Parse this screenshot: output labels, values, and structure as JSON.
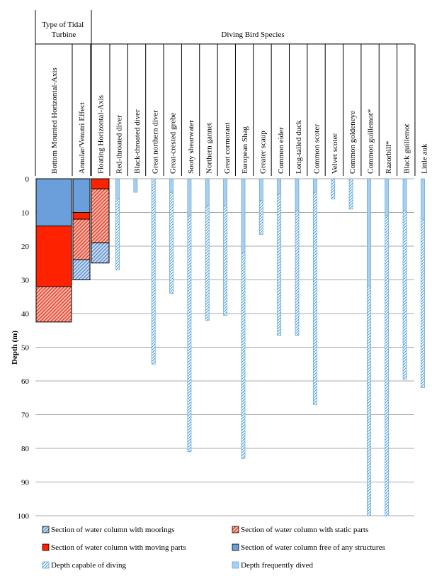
{
  "chart_data": {
    "type": "bar",
    "orientation": "vertical-range",
    "group_headers": {
      "turbines": "Type of Tidal Turbine",
      "birds": "Diving Bird Species"
    },
    "ylabel": "Depth (m)",
    "ylim": [
      0,
      100
    ],
    "y_inverted": true,
    "yticks": [
      "0",
      "10",
      "20",
      "30",
      "40",
      "50",
      "60",
      "70",
      "80",
      "90",
      "100"
    ],
    "grid": true,
    "turbines": [
      {
        "name": "Bottom Mounted Horizontal-Axis",
        "segments": [
          {
            "type": "free",
            "from": 0,
            "to": 14
          },
          {
            "type": "moving",
            "from": 14,
            "to": 32
          },
          {
            "type": "static",
            "from": 32,
            "to": 42.5
          }
        ]
      },
      {
        "name": "Annular/Venutri Effect",
        "segments": [
          {
            "type": "free",
            "from": 0,
            "to": 10
          },
          {
            "type": "moving",
            "from": 10,
            "to": 12
          },
          {
            "type": "static",
            "from": 12,
            "to": 24
          },
          {
            "type": "moorings",
            "from": 24,
            "to": 30
          }
        ]
      },
      {
        "name": "Floating Horizontal-Axis",
        "segments": [
          {
            "type": "moving",
            "from": 0,
            "to": 3
          },
          {
            "type": "static",
            "from": 3,
            "to": 19
          },
          {
            "type": "moorings",
            "from": 19,
            "to": 25
          }
        ]
      }
    ],
    "birds": [
      {
        "name": "Red-throated diver",
        "frequent": 6,
        "capable": 27
      },
      {
        "name": "Black-throated diver",
        "frequent": 4,
        "capable": 4
      },
      {
        "name": "Great northern diver",
        "frequent": 0,
        "capable": 55
      },
      {
        "name": "Great-crested grebe",
        "frequent": 4,
        "capable": 34
      },
      {
        "name": "Sooty shearwater",
        "frequent": 11,
        "capable": 81
      },
      {
        "name": "Northern gannet",
        "frequent": 8,
        "capable": 42
      },
      {
        "name": "Great cormorant",
        "frequent": 8,
        "capable": 40.5
      },
      {
        "name": "European Shag",
        "frequent": 22,
        "capable": 83
      },
      {
        "name": "Greater scaup",
        "frequent": 6.5,
        "capable": 16.5
      },
      {
        "name": "Common eider",
        "frequent": 4.5,
        "capable": 46.5
      },
      {
        "name": "Long-tailed duck",
        "frequent": 9.5,
        "capable": 46.5
      },
      {
        "name": "Common scoter",
        "frequent": 4,
        "capable": 67
      },
      {
        "name": "Velvet scoter",
        "frequent": 0,
        "capable": 6
      },
      {
        "name": "Common goldeneye",
        "frequent": 0,
        "capable": 9
      },
      {
        "name": "Common guillemot*",
        "frequent": 32,
        "capable": 100
      },
      {
        "name": "Razorbill*",
        "frequent": 11,
        "capable": 100
      },
      {
        "name": "Black guillemot",
        "frequent": 9.5,
        "capable": 59.5
      },
      {
        "name": "Little auk",
        "frequent": 12,
        "capable": 62
      }
    ],
    "legend": [
      {
        "key": "moorings",
        "label": "Section of water column with moorings"
      },
      {
        "key": "static",
        "label": "Section of water column with static parts"
      },
      {
        "key": "moving",
        "label": "Section of water column with moving parts"
      },
      {
        "key": "free",
        "label": "Section of water column free of any structures"
      },
      {
        "key": "capable",
        "label": "Depth capable of diving"
      },
      {
        "key": "frequent",
        "label": "Depth frequently dived"
      }
    ],
    "legend_position": "bottom",
    "colors": {
      "free": "#6a9fdb",
      "moving": "#ff2200",
      "static_fill": "#f4b6aa",
      "static_hatch": "#e8331c",
      "moorings_fill": "#c9d9f0",
      "moorings_hatch": "#4f86c6",
      "bird_frequent": "#a9cfee",
      "bird_capable_hatch": "#4aa3df",
      "bird_outline": "#6ba8d8",
      "grid": "#8c8c8c"
    }
  }
}
